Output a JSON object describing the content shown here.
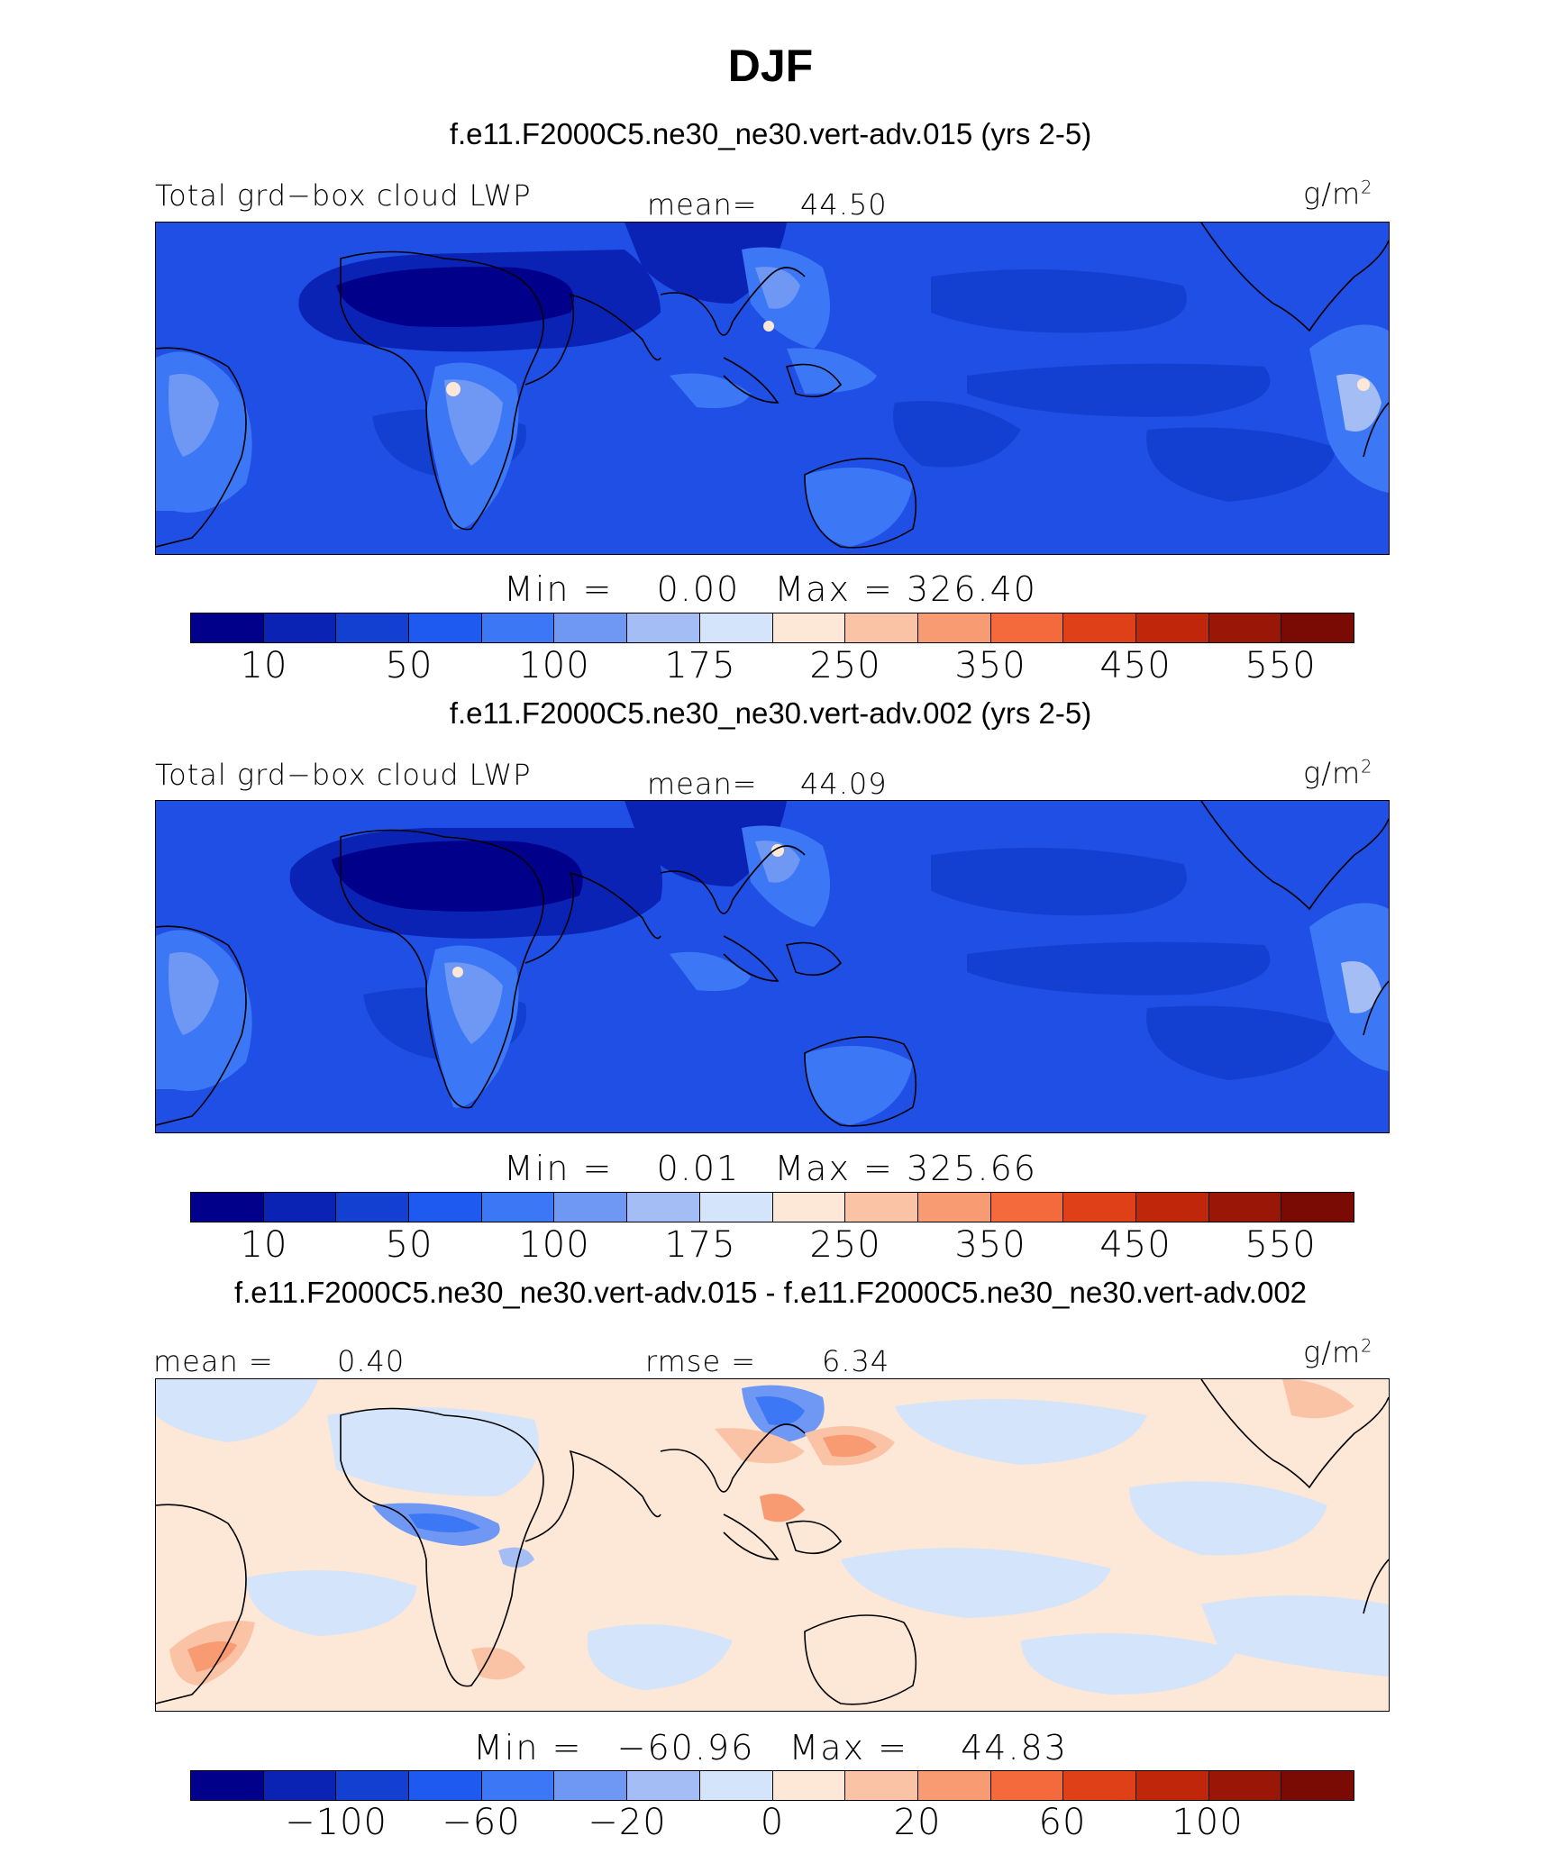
{
  "title": "DJF",
  "panels": [
    {
      "case": "f.e11.F2000C5.ne30_ne30.vert-adv.015 (yrs 2-5)",
      "variable": "Total grd−box cloud LWP",
      "stat_label": "mean=",
      "stat_value": "44.50",
      "units": "g/m",
      "units_sup": "2",
      "min_label": "Min  =",
      "min_value": "0.00",
      "max_label": "Max  =",
      "max_value": "326.40",
      "colorbar_ticks": [
        "10",
        "50",
        "100",
        "175",
        "250",
        "350",
        "450",
        "550"
      ]
    },
    {
      "case": "f.e11.F2000C5.ne30_ne30.vert-adv.002 (yrs 2-5)",
      "variable": "Total grd−box cloud LWP",
      "stat_label": "mean=",
      "stat_value": "44.09",
      "units": "g/m",
      "units_sup": "2",
      "min_label": "Min  =",
      "min_value": "0.01",
      "max_label": "Max  =",
      "max_value": "325.66",
      "colorbar_ticks": [
        "10",
        "50",
        "100",
        "175",
        "250",
        "350",
        "450",
        "550"
      ]
    },
    {
      "case": "f.e11.F2000C5.ne30_ne30.vert-adv.015 - f.e11.F2000C5.ne30_ne30.vert-adv.002",
      "stat_label": "mean =",
      "stat_value": "0.40",
      "stat2_label": "rmse =",
      "stat2_value": "6.34",
      "units": "g/m",
      "units_sup": "2",
      "min_label": "Min =",
      "min_value": "−60.96",
      "max_label": "Max =",
      "max_value": "44.83",
      "colorbar_ticks": [
        "−100",
        "−60",
        "−20",
        "0",
        "20",
        "60",
        "100"
      ]
    }
  ],
  "colormap": [
    "#00008b",
    "#0a23b4",
    "#1440d2",
    "#1e5af0",
    "#3c78f5",
    "#6e98f3",
    "#a4bef5",
    "#d4e4fa",
    "#fde8d8",
    "#fbc3a6",
    "#f89a72",
    "#f46a3c",
    "#e04018",
    "#c0260a",
    "#9a1606",
    "#7a0a04"
  ],
  "colors": {
    "abs_background": "#1f4fe4",
    "diff_background": "#fde7d6"
  }
}
